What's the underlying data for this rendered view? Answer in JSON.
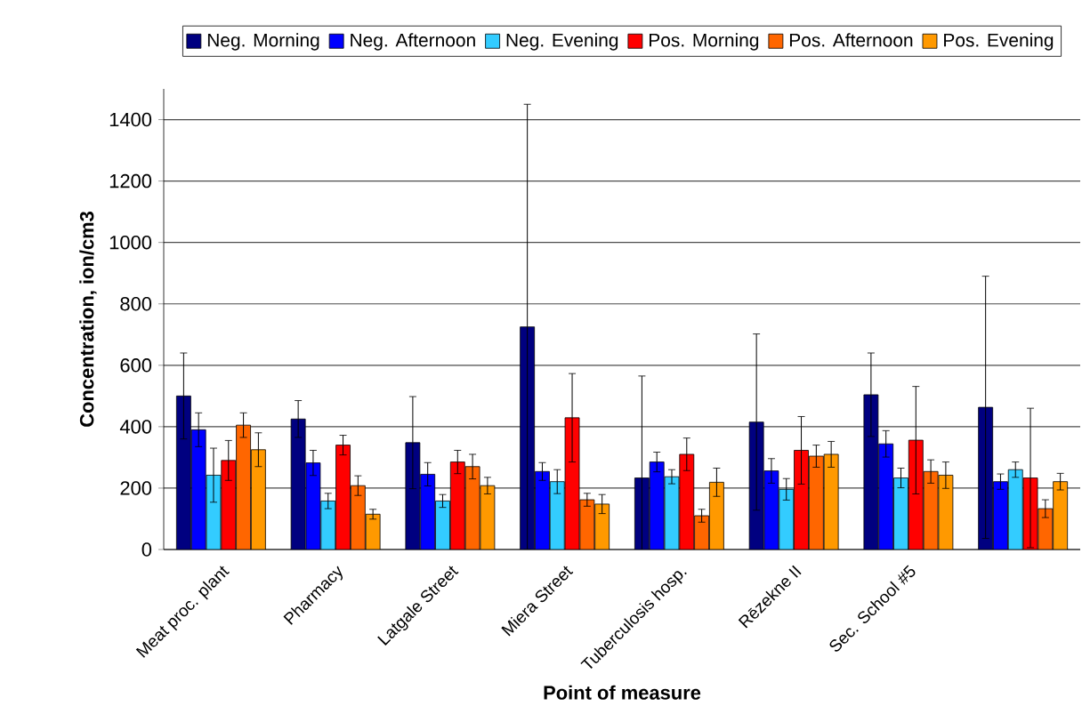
{
  "chart_data": {
    "type": "bar",
    "xlabel": "Point of measure",
    "ylabel": "Concentration, ion/cm3",
    "categories": [
      "Meat proc. plant",
      "Pharmacy",
      "Latgale Street",
      "Miera Street",
      "Tuberculosis hosp.",
      "Rēzekne II",
      "Sec. School #5",
      null
    ],
    "series": [
      {
        "name": "Neg. Morning",
        "color": "#000080",
        "values": [
          500,
          425,
          348,
          725,
          233,
          415,
          504,
          463
        ],
        "errors": [
          140,
          60,
          150,
          725,
          332,
          287,
          136,
          427
        ]
      },
      {
        "name": "Neg. Afternoon",
        "color": "#0000ff",
        "values": [
          390,
          282,
          245,
          254,
          285,
          256,
          344,
          221
        ],
        "errors": [
          55,
          41,
          38,
          29,
          32,
          40,
          43,
          25
        ]
      },
      {
        "name": "Neg. Evening",
        "color": "#33ccff",
        "values": [
          242,
          158,
          158,
          221,
          237,
          196,
          233,
          260
        ],
        "errors": [
          88,
          25,
          21,
          39,
          23,
          35,
          32,
          25
        ]
      },
      {
        "name": "Pos. Morning",
        "color": "#ff0000",
        "values": [
          290,
          340,
          285,
          429,
          310,
          323,
          356,
          233
        ],
        "errors": [
          65,
          32,
          38,
          144,
          53,
          110,
          175,
          227
        ]
      },
      {
        "name": "Pos. Afternoon",
        "color": "#ff6600",
        "values": [
          405,
          208,
          270,
          162,
          110,
          304,
          254,
          133
        ],
        "errors": [
          40,
          32,
          40,
          21,
          21,
          36,
          38,
          29
        ]
      },
      {
        "name": "Pos. Evening",
        "color": "#ff9900",
        "values": [
          325,
          115,
          208,
          148,
          219,
          310,
          242,
          221
        ],
        "errors": [
          55,
          16,
          27,
          31,
          46,
          42,
          43,
          27
        ]
      }
    ],
    "ylim": [
      0,
      1500
    ],
    "yticks": [
      0,
      200,
      400,
      600,
      800,
      1000,
      1200,
      1400
    ],
    "grid": "y",
    "legend": "top"
  }
}
